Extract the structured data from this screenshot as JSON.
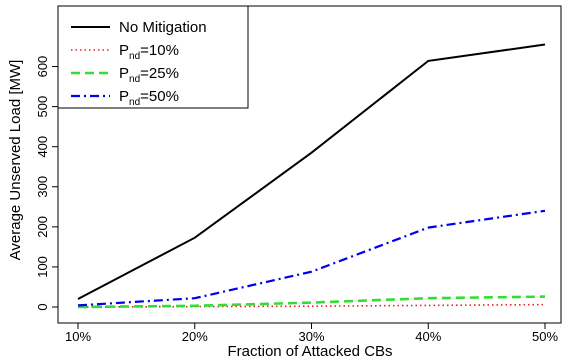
{
  "chart_data": {
    "type": "line",
    "title": "",
    "xlabel": "Fraction of Attacked CBs",
    "ylabel": "Average Unserved Load [MW]",
    "x": [
      "10%",
      "20%",
      "30%",
      "40%",
      "50%"
    ],
    "x_values": [
      10,
      20,
      30,
      40,
      50
    ],
    "xlim": [
      10,
      50
    ],
    "ylim": [
      0,
      650
    ],
    "yticks": [
      0,
      100,
      200,
      300,
      400,
      500,
      600
    ],
    "ytick_labels": [
      "0",
      "100",
      "200",
      "300",
      "400",
      "500",
      "600"
    ],
    "grid": false,
    "legend_position": "top-left",
    "series": [
      {
        "name": "No Mitigation",
        "name_main": "No Mitigation",
        "name_sub": "",
        "name_rest": "",
        "color": "#000000",
        "dash": "solid",
        "values": [
          20,
          173,
          385,
          614,
          655
        ]
      },
      {
        "name": "Pnd=10%",
        "name_main": "P",
        "name_sub": "nd",
        "name_rest": "=10%",
        "color": "#e8202a",
        "dash": "dotted",
        "values": [
          0,
          1,
          2,
          4,
          6
        ]
      },
      {
        "name": "Pnd=25%",
        "name_main": "P",
        "name_sub": "nd",
        "name_rest": "=25%",
        "color": "#33dd33",
        "dash": "dashed",
        "values": [
          0,
          3,
          11,
          22,
          26
        ]
      },
      {
        "name": "Pnd=50%",
        "name_main": "P",
        "name_sub": "nd",
        "name_rest": "=50%",
        "color": "#0000ee",
        "dash": "dashdot",
        "values": [
          4,
          22,
          88,
          198,
          240
        ]
      }
    ]
  }
}
